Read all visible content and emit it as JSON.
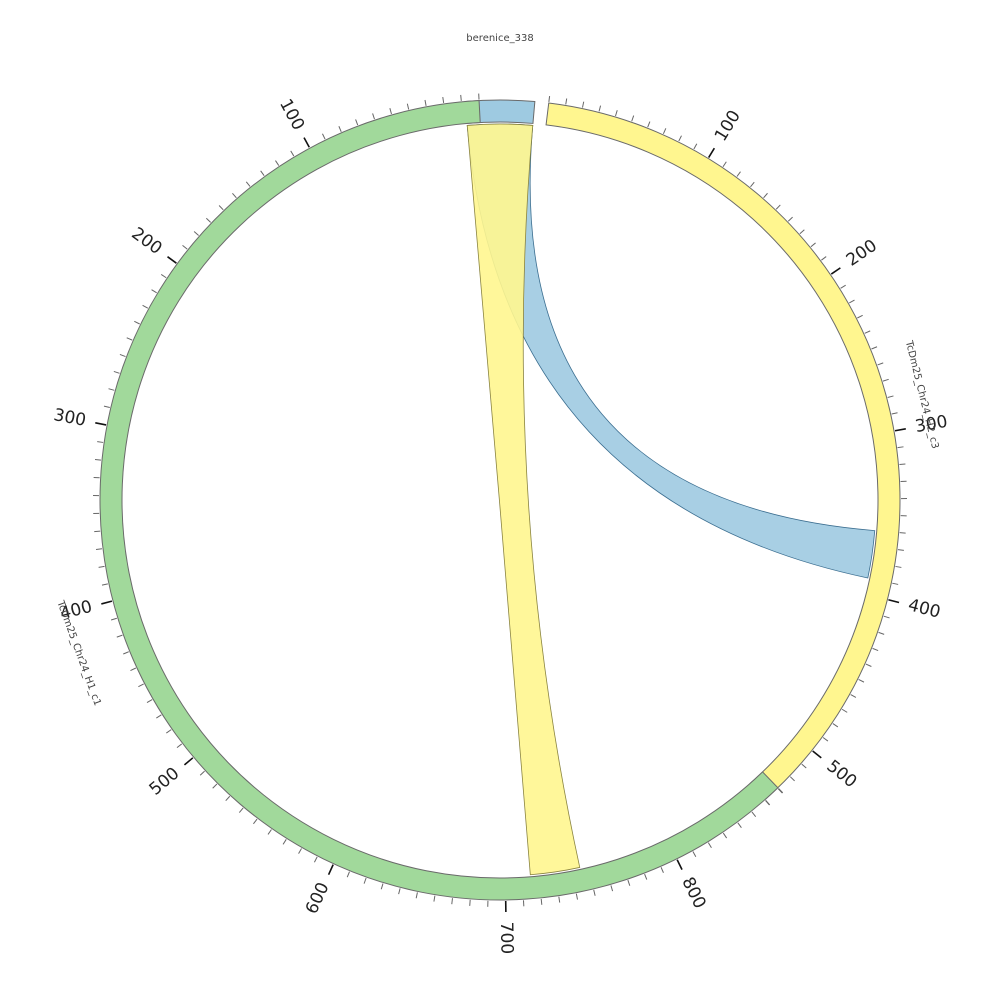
{
  "chart_data": {
    "type": "chord",
    "title": "",
    "segments": [
      {
        "name": "berenice_338",
        "length": 30,
        "color": "#9ecae1"
      },
      {
        "name": "TcDm25_Chr24_H2_c3",
        "length": 540,
        "color": "#fff68f"
      },
      {
        "name": "TcDm25_Chr24_H1_c1",
        "length": 870,
        "color": "#a1d99b"
      }
    ],
    "major_tick_interval": 100,
    "minor_tick_interval": 10,
    "tick_labels": [
      "100",
      "200",
      "300",
      "400",
      "500",
      "600",
      "700",
      "800"
    ],
    "links": [
      {
        "source": "berenice_338",
        "source_start": 0,
        "source_end": 30,
        "target": "TcDm25_Chr24_H2_c3",
        "target_start": 360,
        "target_end": 390,
        "color": "#9ecae1"
      },
      {
        "source": "berenice_338",
        "source_start": 0,
        "source_end": 30,
        "target": "TcDm25_Chr24_H1_c1",
        "target_start": 715,
        "target_end": 745,
        "color": "#fff68f"
      }
    ]
  }
}
